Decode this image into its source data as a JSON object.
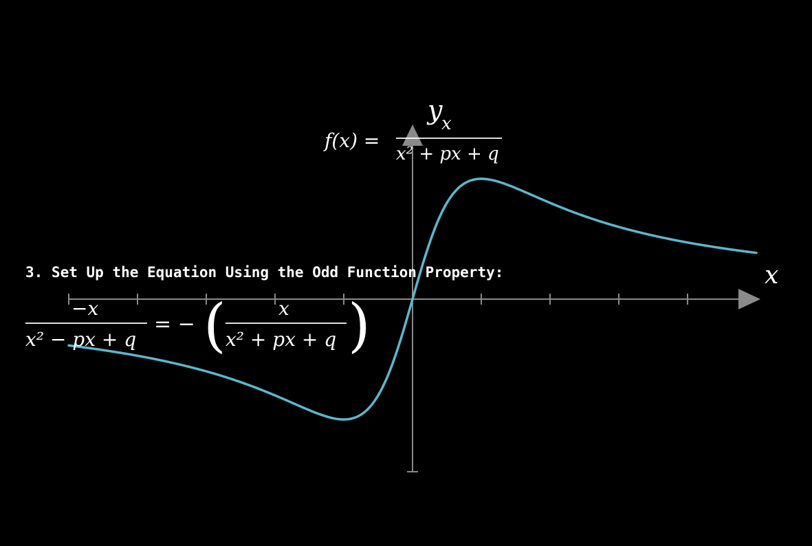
{
  "colors": {
    "background": "#000000",
    "axes": "#8a8a8a",
    "curve": "#5ab8cf",
    "text": "#ffffff"
  },
  "axes": {
    "x_label": "x",
    "y_label": "y"
  },
  "chart_data": {
    "type": "line",
    "function": "x/(x^2+1)",
    "xlim": [
      -5,
      5
    ],
    "ylim": [
      -2.5,
      1.8
    ],
    "x_ticks": [
      -5,
      -4,
      -3,
      -2,
      -1,
      1,
      2,
      3,
      4
    ],
    "series": [
      {
        "x": [
          -5,
          -4.5,
          -4,
          -3.5,
          -3,
          -2.5,
          -2,
          -1.5,
          -1.25,
          -1,
          -0.75,
          -0.5,
          -0.25,
          0,
          0.25,
          0.5,
          0.75,
          1,
          1.25,
          1.5,
          2,
          2.5,
          3,
          3.5,
          4,
          4.5,
          5
        ],
        "y": [
          -0.19,
          -0.21,
          -0.24,
          -0.26,
          -0.3,
          -0.34,
          -0.4,
          -0.46,
          -0.49,
          -0.5,
          -0.48,
          -0.4,
          -0.24,
          0,
          0.24,
          0.4,
          0.48,
          0.5,
          0.49,
          0.46,
          0.4,
          0.34,
          0.3,
          0.26,
          0.24,
          0.21,
          0.19
        ]
      }
    ]
  },
  "formula_top": {
    "lhs": "f(x) =",
    "numerator": "x",
    "denominator": "x² + px + q"
  },
  "step": {
    "heading": "3. Set Up the Equation Using the Odd Function Property:"
  },
  "equation": {
    "left_numerator": "−x",
    "left_denominator": "x² − px + q",
    "equals_neg": "= −",
    "open_paren": "(",
    "right_numerator": "x",
    "right_denominator": "x² + px + q",
    "close_paren": ")"
  }
}
